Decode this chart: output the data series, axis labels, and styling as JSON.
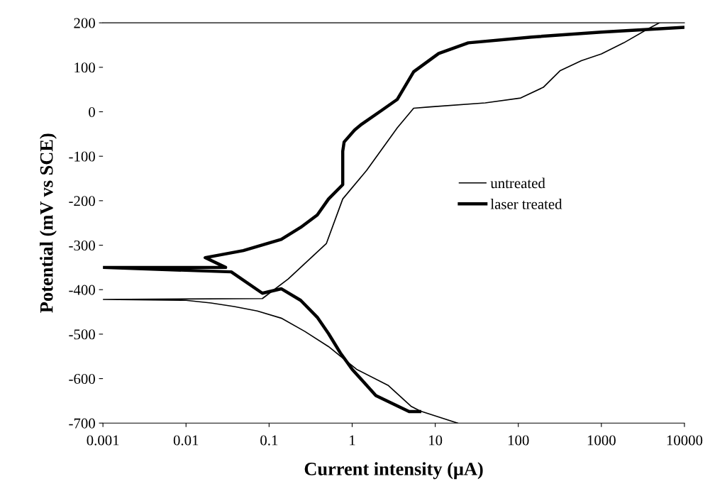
{
  "chart_data": {
    "type": "line",
    "xlabel": "Current intensity (μA)",
    "ylabel": "Potential (mV vs SCE)",
    "log": "x",
    "xlim": [
      0.001,
      10000
    ],
    "xticks": [
      0.001,
      0.01,
      0.1,
      1,
      10,
      100,
      1000,
      10000
    ],
    "ylim": [
      -700,
      200
    ],
    "yticks": [
      -700,
      -600,
      -500,
      -400,
      -300,
      -200,
      -100,
      0,
      100,
      200
    ],
    "grid": false,
    "legend": "right",
    "marker": "none",
    "line_style": "solid",
    "series": [
      {
        "name": "untreated",
        "color": "#000000",
        "x": [
          18.6,
          6.6,
          5.1,
          2.7,
          1.13,
          0.52,
          0.27,
          0.14,
          0.072,
          0.038,
          0.02,
          0.01,
          0.001,
          0.001,
          0.083,
          0.17,
          0.49,
          0.77,
          1.49,
          3.5,
          5.5,
          8.7,
          40,
          107,
          200,
          317,
          575,
          1000,
          1860,
          3700,
          5000
        ],
        "values": [
          -700,
          -673,
          -662,
          -615,
          -579,
          -528,
          -494,
          -464,
          -448,
          -438,
          -430,
          -424,
          -422,
          -422,
          -420,
          -376,
          -296,
          -196,
          -132,
          -36,
          8,
          11,
          20,
          31,
          55,
          92,
          115,
          130,
          155,
          187,
          200
        ]
      },
      {
        "name": "laser treated",
        "color": "#000000",
        "x": [
          6.5,
          4.85,
          1.93,
          1.0,
          0.72,
          0.52,
          0.38,
          0.24,
          0.14,
          0.083,
          0.035,
          0.001,
          0.03,
          0.017,
          0.049,
          0.14,
          0.24,
          0.38,
          0.52,
          0.77,
          0.77,
          0.8,
          1.07,
          1.3,
          2.3,
          3.5,
          5.5,
          11,
          25,
          145,
          1000,
          10000
        ],
        "values": [
          -674,
          -674,
          -638,
          -579,
          -542,
          -499,
          -462,
          -424,
          -398,
          -408,
          -360,
          -350,
          -350,
          -328,
          -312,
          -287,
          -260,
          -232,
          -196,
          -164,
          -89,
          -68,
          -41,
          -28,
          4,
          28,
          90,
          131,
          155,
          168,
          179,
          190
        ]
      }
    ]
  }
}
